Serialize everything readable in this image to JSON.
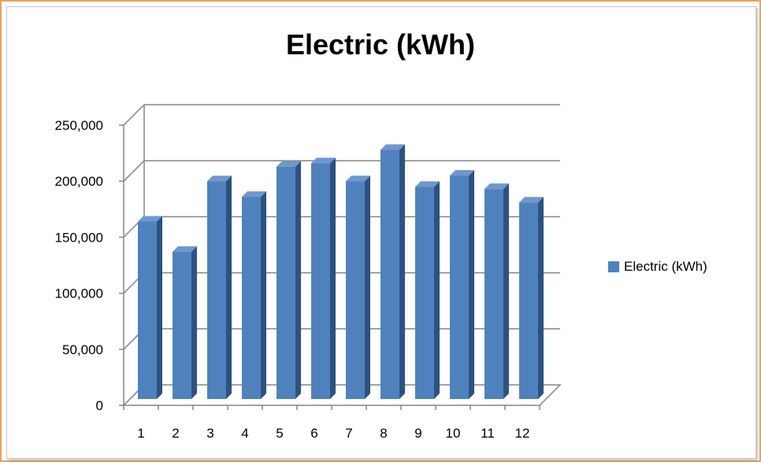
{
  "chart_data": {
    "type": "bar",
    "title": "Electric (kWh)",
    "categories": [
      "1",
      "2",
      "3",
      "4",
      "5",
      "6",
      "7",
      "8",
      "9",
      "10",
      "11",
      "12"
    ],
    "series": [
      {
        "name": "Electric (kWh)",
        "values": [
          164000,
          137000,
          200000,
          186000,
          213000,
          216000,
          200000,
          228000,
          195000,
          205000,
          193000,
          181000
        ]
      }
    ],
    "y_ticks": [
      "0",
      "50,000",
      "100,000",
      "150,000",
      "200,000",
      "250,000"
    ],
    "ylim": [
      0,
      250000
    ],
    "grid": true,
    "legend_position": "right",
    "colors": {
      "bar_front": "#4f81bd",
      "bar_side": "#2c5281",
      "bar_top": "#6f97cf",
      "grid": "#868686"
    }
  }
}
